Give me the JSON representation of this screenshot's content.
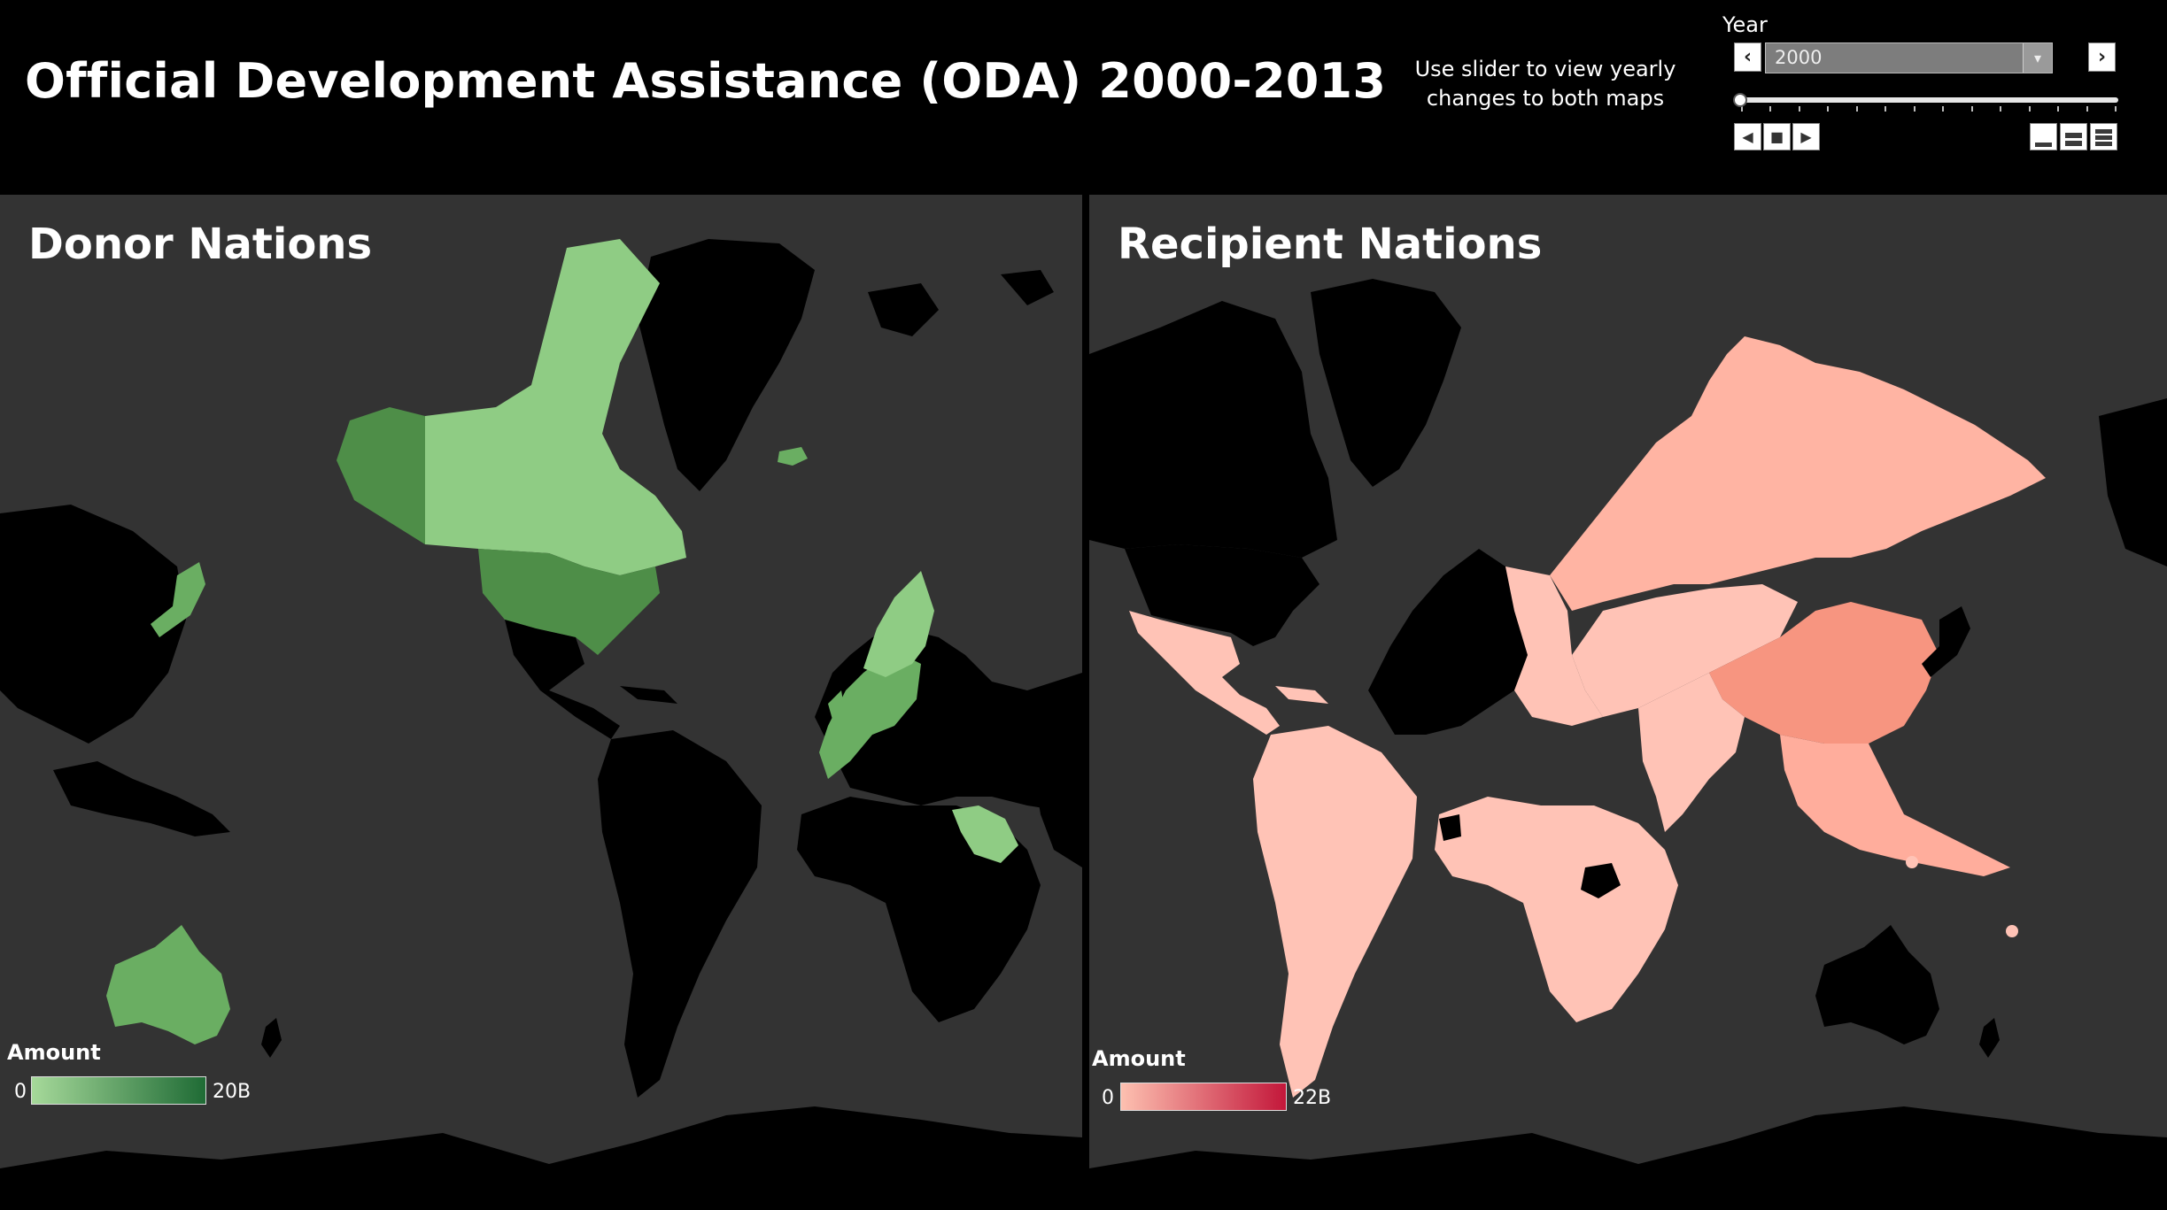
{
  "header": {
    "title": "Official Development Assistance (ODA) 2000-2013",
    "hint_line1": "Use slider to view yearly",
    "hint_line2": "changes to both maps"
  },
  "year_filter": {
    "label": "Year",
    "selected": "2000",
    "prev_icon": "chevron-left-icon",
    "next_icon": "chevron-right-icon",
    "slider_fraction": 0.0,
    "tick_count": 14
  },
  "panels": {
    "donor": {
      "title": "Donor Nations",
      "legend": {
        "title": "Amount",
        "min_label": "0",
        "max_label": "20B",
        "color_low": "#a6d99a",
        "color_high": "#1f6b35"
      }
    },
    "recipient": {
      "title": "Recipient Nations",
      "legend": {
        "title": "Amount",
        "min_label": "0",
        "max_label": "22B",
        "color_low": "#fdc0b0",
        "color_high": "#c3173a"
      }
    }
  },
  "colors": {
    "ocean": "#333333",
    "land_no_data": "#000000",
    "donor_light": "#8fcc84",
    "donor_mid": "#6aae62",
    "donor_dark": "#4e8e48",
    "recipient_light": "#ffc3b6",
    "recipient_mid": "#ffad9c",
    "recipient_dark": "#f79580"
  }
}
